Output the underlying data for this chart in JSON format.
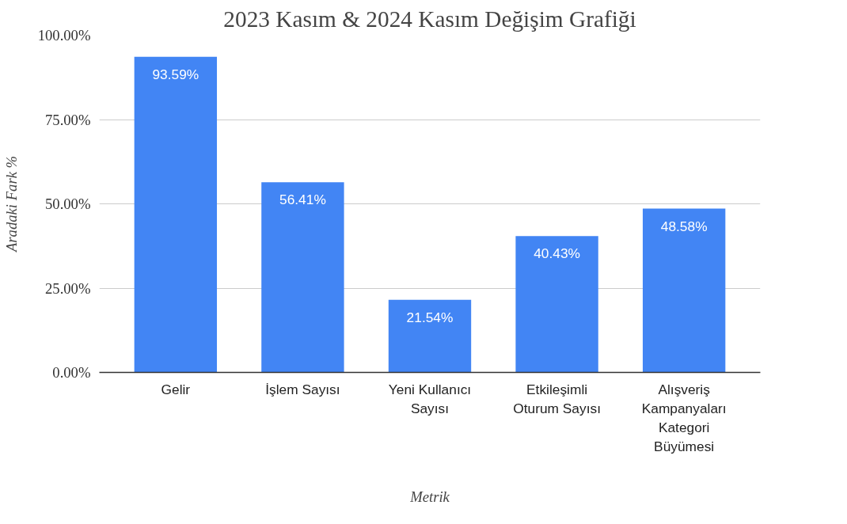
{
  "chart_data": {
    "type": "bar",
    "title": "2023 Kasım & 2024 Kasım Değişim Grafiği",
    "xlabel": "Metrik",
    "ylabel": "Aradaki Fark %",
    "categories": [
      "Gelir",
      "İşlem Sayısı",
      "Yeni Kullanıcı Sayısı",
      "Etkileşimli Oturum Sayısı",
      "Alışveriş Kampanyaları Kategori Büyümesi"
    ],
    "values": [
      93.59,
      56.41,
      21.54,
      40.43,
      48.58
    ],
    "value_labels": [
      "93.59%",
      "56.41%",
      "21.54%",
      "40.43%",
      "48.58%"
    ],
    "color": "#4285f4",
    "ylim": [
      0,
      100
    ],
    "yticks": [
      {
        "value": 0,
        "label": "0.00%"
      },
      {
        "value": 25,
        "label": "25.00%"
      },
      {
        "value": 50,
        "label": "50.00%"
      },
      {
        "value": 75,
        "label": "75.00%"
      },
      {
        "value": 100,
        "label": "100.00%"
      }
    ],
    "grid": "y"
  }
}
